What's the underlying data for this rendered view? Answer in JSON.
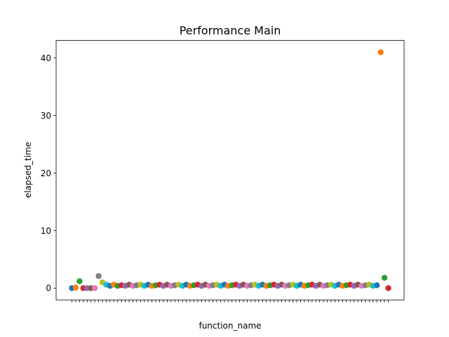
{
  "chart_data": {
    "type": "scatter",
    "title": "Performance Main",
    "xlabel": "function_name",
    "ylabel": "elapsed_time",
    "ylim": [
      -2.05,
      43.05
    ],
    "yticks": [
      0,
      10,
      20,
      30,
      40
    ],
    "grid": false,
    "legend": "none",
    "xtick_label_note": "x-axis category labels are rendered overlapping and are illegible in the original",
    "point_count": 84,
    "palette": [
      "#1f77b4",
      "#ff7f0e",
      "#2ca02c",
      "#d62728",
      "#9467bd",
      "#8c564b",
      "#e377c2",
      "#7f7f7f",
      "#bcbd22",
      "#17becf"
    ],
    "values": [
      0.0,
      0.1,
      1.2,
      0.0,
      0.0,
      0.0,
      0.0,
      2.1,
      1.0,
      0.6,
      0.4,
      0.6,
      0.4,
      0.5,
      0.4,
      0.6,
      0.4,
      0.5,
      0.6,
      0.4,
      0.6,
      0.4,
      0.5,
      0.6,
      0.4,
      0.6,
      0.4,
      0.5,
      0.6,
      0.4,
      0.6,
      0.4,
      0.5,
      0.6,
      0.4,
      0.6,
      0.4,
      0.5,
      0.6,
      0.4,
      0.6,
      0.4,
      0.5,
      0.6,
      0.4,
      0.6,
      0.4,
      0.5,
      0.6,
      0.4,
      0.6,
      0.4,
      0.5,
      0.6,
      0.4,
      0.6,
      0.4,
      0.5,
      0.6,
      0.4,
      0.6,
      0.4,
      0.5,
      0.6,
      0.4,
      0.6,
      0.4,
      0.5,
      0.6,
      0.4,
      0.6,
      0.4,
      0.5,
      0.6,
      0.4,
      0.6,
      0.4,
      0.5,
      0.6,
      0.4,
      0.5,
      41.0,
      1.8,
      0.0
    ]
  }
}
